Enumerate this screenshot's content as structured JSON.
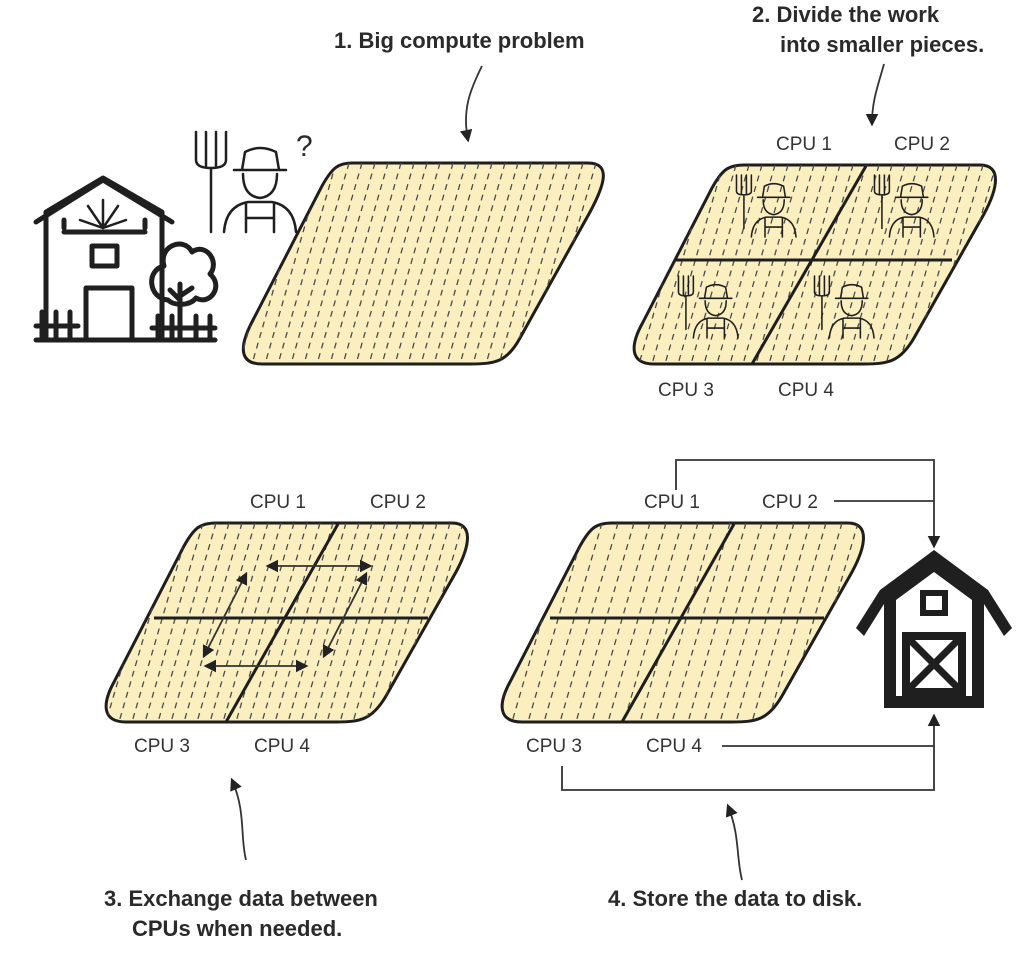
{
  "captions": {
    "step1": "1. Big compute problem",
    "step2_line1": "2. Divide the work",
    "step2_line2": "into smaller pieces.",
    "step3_line1": "3. Exchange data between",
    "step3_line2": "CPUs when needed.",
    "step4": "4. Store the data to disk."
  },
  "farmer": {
    "question_mark": "?"
  },
  "panels": {
    "divide": {
      "cpu1": "CPU 1",
      "cpu2": "CPU 2",
      "cpu3": "CPU 3",
      "cpu4": "CPU 4"
    },
    "exchange": {
      "cpu1": "CPU 1",
      "cpu2": "CPU 2",
      "cpu3": "CPU 3",
      "cpu4": "CPU 4"
    },
    "store": {
      "cpu1": "CPU 1",
      "cpu2": "CPU 2",
      "cpu3": "CPU 3",
      "cpu4": "CPU 4"
    }
  },
  "colors": {
    "field": "#fbefbf",
    "ink": "#1f1f1f"
  },
  "icons": [
    "farmhouse-icon",
    "tree-icon",
    "pitchfork-icon",
    "farmer-icon",
    "barn-icon"
  ]
}
